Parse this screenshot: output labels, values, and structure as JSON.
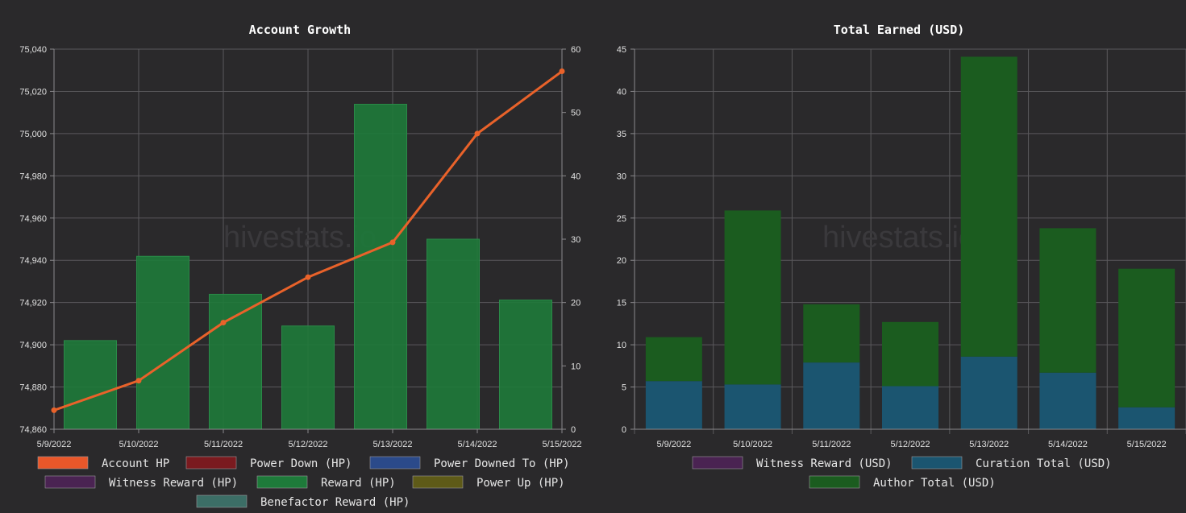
{
  "watermark": "hivestats.io",
  "chart_data": [
    {
      "type": "bar",
      "title": "Account Growth",
      "categories": [
        "5/9/2022",
        "5/10/2022",
        "5/11/2022",
        "5/12/2022",
        "5/13/2022",
        "5/14/2022",
        "5/15/2022"
      ],
      "y_left": {
        "min": 74860,
        "max": 75040,
        "step": 20
      },
      "y_right": {
        "min": 0,
        "max": 60,
        "step": 10
      },
      "grid": true,
      "legend_position": "bottom",
      "series": [
        {
          "name": "Account HP",
          "type": "line",
          "axis": "left",
          "color": "#e9622a",
          "values": [
            74869,
            74883,
            74910.5,
            74932,
            74948.5,
            75000,
            75029.5
          ]
        },
        {
          "name": "Reward (HP)",
          "type": "bar",
          "axis": "right",
          "color": "#1e7a3a",
          "values": [
            14,
            27.3,
            21.3,
            16.3,
            51.3,
            30,
            20.4
          ]
        }
      ],
      "legend": [
        {
          "label": "Account HP",
          "color": "#e9572a"
        },
        {
          "label": "Power Down (HP)",
          "color": "#7a1a1f"
        },
        {
          "label": "Power Downed To (HP)",
          "color": "#2b4a8a"
        },
        {
          "label": "Witness Reward (HP)",
          "color": "#4a2352"
        },
        {
          "label": "Reward (HP)",
          "color": "#1e7a3a"
        },
        {
          "label": "Power Up (HP)",
          "color": "#5e5a18"
        },
        {
          "label": "Benefactor Reward (HP)",
          "color": "#3c6e66"
        }
      ]
    },
    {
      "type": "bar",
      "title": "Total Earned (USD)",
      "categories": [
        "5/9/2022",
        "5/10/2022",
        "5/11/2022",
        "5/12/2022",
        "5/13/2022",
        "5/14/2022",
        "5/15/2022"
      ],
      "y": {
        "min": 0,
        "max": 45,
        "step": 5
      },
      "stacked": true,
      "grid": true,
      "legend_position": "bottom",
      "series": [
        {
          "name": "Witness Reward (USD)",
          "color": "#4a2352",
          "values": [
            0,
            0,
            0,
            0,
            0,
            0,
            0
          ]
        },
        {
          "name": "Curation Total (USD)",
          "color": "#1b5570",
          "values": [
            5.7,
            5.3,
            7.9,
            5.1,
            8.6,
            6.7,
            2.6
          ]
        },
        {
          "name": "Author Total (USD)",
          "color": "#1b5c1f",
          "values": [
            5.2,
            20.6,
            6.9,
            7.6,
            35.5,
            17.1,
            16.4
          ]
        }
      ],
      "legend": [
        {
          "label": "Witness Reward (USD)",
          "color": "#4a2352"
        },
        {
          "label": "Curation Total (USD)",
          "color": "#1b5570"
        },
        {
          "label": "Author Total (USD)",
          "color": "#1b5c1f"
        }
      ]
    }
  ]
}
